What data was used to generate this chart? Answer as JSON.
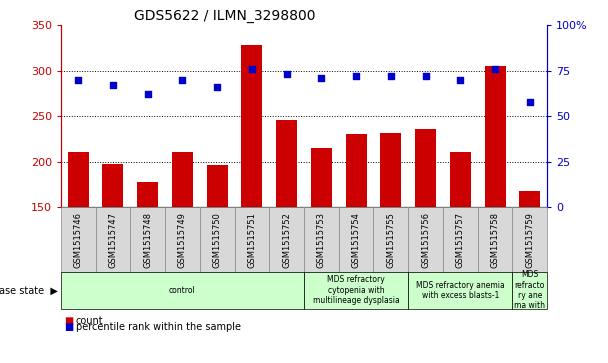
{
  "title": "GDS5622 / ILMN_3298800",
  "samples": [
    "GSM1515746",
    "GSM1515747",
    "GSM1515748",
    "GSM1515749",
    "GSM1515750",
    "GSM1515751",
    "GSM1515752",
    "GSM1515753",
    "GSM1515754",
    "GSM1515755",
    "GSM1515756",
    "GSM1515757",
    "GSM1515758",
    "GSM1515759"
  ],
  "counts": [
    210,
    197,
    178,
    211,
    196,
    328,
    246,
    215,
    230,
    231,
    236,
    211,
    305,
    168
  ],
  "percentile_ranks": [
    70,
    67,
    62,
    70,
    66,
    76,
    73,
    71,
    72,
    72,
    72,
    70,
    76,
    58
  ],
  "ylim_left": [
    150,
    350
  ],
  "ylim_right": [
    0,
    100
  ],
  "yticks_left": [
    150,
    200,
    250,
    300,
    350
  ],
  "yticks_right": [
    0,
    25,
    50,
    75,
    100
  ],
  "bar_color": "#cc0000",
  "dot_color": "#0000cc",
  "grid_color": "#000000",
  "group_boundaries": [
    [
      0,
      7,
      "control"
    ],
    [
      7,
      10,
      "MDS refractory\ncytopenia with\nmultilineage dysplasia"
    ],
    [
      10,
      13,
      "MDS refractory anemia\nwith excess blasts-1"
    ],
    [
      13,
      14,
      "MDS\nrefracto\nry ane\nma with"
    ]
  ],
  "group_colors": [
    "#ccffcc",
    "#ccffcc",
    "#ccffcc",
    "#ccffcc"
  ],
  "xlabel_disease": "disease state",
  "legend_count": "count",
  "legend_percentile": "percentile rank within the sample",
  "plot_bg": "#ffffff",
  "sample_box_color": "#d8d8d8",
  "sample_box_edge": "#aaaaaa"
}
